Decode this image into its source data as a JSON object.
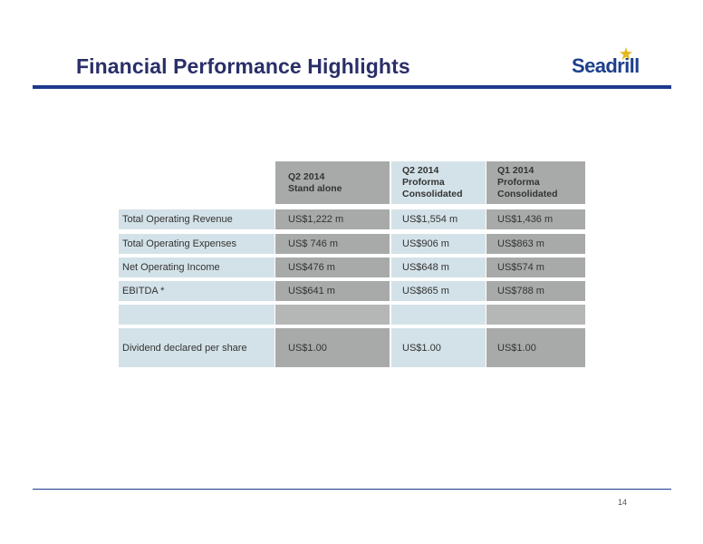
{
  "slide": {
    "title": "Financial Performance Highlights",
    "logo_text": "Seadrill",
    "page_number": "14",
    "colors": {
      "title": "#2a2f68",
      "rule": "#1e3a8e",
      "logo": "#1d3f8c",
      "logo_star": "#e6b820"
    }
  },
  "table": {
    "columns": [
      "Q2 2014\nStand alone",
      "Q2 2014\nProforma\nConsolidated",
      "Q1 2014\nProforma\nConsolidated"
    ],
    "rows": [
      {
        "label": "Total Operating Revenue",
        "values": [
          "US$1,222 m",
          "US$1,554 m",
          "US$1,436 m"
        ]
      },
      {
        "label": "Total Operating Expenses",
        "values": [
          "US$ 746 m",
          "US$906 m",
          "US$863 m"
        ]
      },
      {
        "label": "Net Operating Income",
        "values": [
          "US$476 m",
          "US$648 m",
          "US$574 m"
        ]
      },
      {
        "label": "EBITDA *",
        "values": [
          "US$641 m",
          "US$865 m",
          "US$788 m"
        ]
      },
      {
        "label": "",
        "values": [
          "",
          "",
          ""
        ]
      },
      {
        "label": "Dividend declared per share",
        "values": [
          "US$1.00",
          "US$1.00",
          "US$1.00"
        ]
      }
    ]
  }
}
